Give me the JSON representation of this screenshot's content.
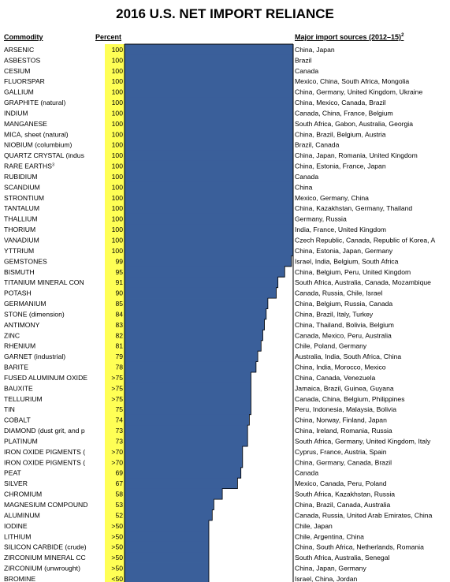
{
  "title": "2016 U.S. NET IMPORT RELIANCE",
  "headers": {
    "commodity": "Commodity",
    "percent": "Percent",
    "sources": "Major import sources (2012–15)",
    "sources_sup": "2"
  },
  "colors": {
    "bar": "#3a5f9a",
    "percent_highlight": "#ffff55",
    "frame": "#000000"
  },
  "chart_data": {
    "type": "bar",
    "orientation": "horizontal",
    "title": "2016 U.S. NET IMPORT RELIANCE",
    "xlim": [
      0,
      100
    ],
    "rows": [
      {
        "commodity": "ARSENIC",
        "sup": "",
        "label": "100",
        "value": 100,
        "sources": "China, Japan"
      },
      {
        "commodity": "ASBESTOS",
        "sup": "",
        "label": "100",
        "value": 100,
        "sources": "Brazil"
      },
      {
        "commodity": "CESIUM",
        "sup": "",
        "label": "100",
        "value": 100,
        "sources": "Canada"
      },
      {
        "commodity": "FLUORSPAR",
        "sup": "",
        "label": "100",
        "value": 100,
        "sources": "Mexico, China, South Africa, Mongolia"
      },
      {
        "commodity": "GALLIUM",
        "sup": "",
        "label": "100",
        "value": 100,
        "sources": "China, Germany, United Kingdom, Ukraine"
      },
      {
        "commodity": "GRAPHITE (natural)",
        "sup": "",
        "label": "100",
        "value": 100,
        "sources": "China, Mexico, Canada, Brazil"
      },
      {
        "commodity": "INDIUM",
        "sup": "",
        "label": "100",
        "value": 100,
        "sources": "Canada, China, France, Belgium"
      },
      {
        "commodity": "MANGANESE",
        "sup": "",
        "label": "100",
        "value": 100,
        "sources": "South Africa, Gabon, Australia, Georgia"
      },
      {
        "commodity": "MICA, sheet (natural)",
        "sup": "",
        "label": "100",
        "value": 100,
        "sources": "China, Brazil, Belgium, Austria"
      },
      {
        "commodity": "NIOBIUM (columbium)",
        "sup": "",
        "label": "100",
        "value": 100,
        "sources": "Brazil, Canada"
      },
      {
        "commodity": "QUARTZ CRYSTAL (indus",
        "sup": "",
        "label": "100",
        "value": 100,
        "sources": "China, Japan, Romania, United Kingdom"
      },
      {
        "commodity": "RARE EARTHS",
        "sup": "3",
        "label": "100",
        "value": 100,
        "sources": "China, Estonia, France, Japan"
      },
      {
        "commodity": "RUBIDIUM",
        "sup": "",
        "label": "100",
        "value": 100,
        "sources": "Canada"
      },
      {
        "commodity": "SCANDIUM",
        "sup": "",
        "label": "100",
        "value": 100,
        "sources": "China"
      },
      {
        "commodity": "STRONTIUM",
        "sup": "",
        "label": "100",
        "value": 100,
        "sources": "Mexico, Germany, China"
      },
      {
        "commodity": "TANTALUM",
        "sup": "",
        "label": "100",
        "value": 100,
        "sources": "China, Kazakhstan, Germany, Thailand"
      },
      {
        "commodity": "THALLIUM",
        "sup": "",
        "label": "100",
        "value": 100,
        "sources": "Germany, Russia"
      },
      {
        "commodity": "THORIUM",
        "sup": "",
        "label": "100",
        "value": 100,
        "sources": "India, France, United Kingdom"
      },
      {
        "commodity": "VANADIUM",
        "sup": "",
        "label": "100",
        "value": 100,
        "sources": "Czech Republic, Canada, Republic of Korea, A"
      },
      {
        "commodity": "YTTRIUM",
        "sup": "",
        "label": "100",
        "value": 100,
        "sources": "China, Estonia, Japan, Germany"
      },
      {
        "commodity": "GEMSTONES",
        "sup": "",
        "label": "99",
        "value": 99,
        "sources": "Israel, India, Belgium, South Africa"
      },
      {
        "commodity": "BISMUTH",
        "sup": "",
        "label": "95",
        "value": 95,
        "sources": "China, Belgium, Peru, United Kingdom"
      },
      {
        "commodity": "TITANIUM MINERAL CON",
        "sup": "",
        "label": "91",
        "value": 91,
        "sources": "South Africa, Australia, Canada, Mozambique"
      },
      {
        "commodity": "POTASH",
        "sup": "",
        "label": "90",
        "value": 90,
        "sources": "Canada, Russia, Chile, Israel"
      },
      {
        "commodity": "GERMANIUM",
        "sup": "",
        "label": "85",
        "value": 85,
        "sources": "China, Belgium, Russia, Canada"
      },
      {
        "commodity": "STONE (dimension)",
        "sup": "",
        "label": "84",
        "value": 84,
        "sources": "China, Brazil, Italy, Turkey"
      },
      {
        "commodity": "ANTIMONY",
        "sup": "",
        "label": "83",
        "value": 83,
        "sources": "China, Thailand, Bolivia, Belgium"
      },
      {
        "commodity": "ZINC",
        "sup": "",
        "label": "82",
        "value": 82,
        "sources": "Canada, Mexico, Peru, Australia"
      },
      {
        "commodity": "RHENIUM",
        "sup": "",
        "label": "81",
        "value": 81,
        "sources": "Chile, Poland, Germany"
      },
      {
        "commodity": "GARNET (industrial)",
        "sup": "",
        "label": "79",
        "value": 79,
        "sources": "Australia, India, South Africa, China"
      },
      {
        "commodity": "BARITE",
        "sup": "",
        "label": "78",
        "value": 78,
        "sources": "China, India, Morocco, Mexico"
      },
      {
        "commodity": "FUSED ALUMINUM OXIDE",
        "sup": "",
        "label": ">75",
        "value": 75,
        "sources": "China, Canada, Venezuela"
      },
      {
        "commodity": "BAUXITE",
        "sup": "",
        "label": ">75",
        "value": 75,
        "sources": "Jamaica, Brazil, Guinea, Guyana"
      },
      {
        "commodity": "TELLURIUM",
        "sup": "",
        "label": ">75",
        "value": 75,
        "sources": "Canada, China, Belgium, Philippines"
      },
      {
        "commodity": "TIN",
        "sup": "",
        "label": "75",
        "value": 75,
        "sources": "Peru, Indonesia, Malaysia, Bolivia"
      },
      {
        "commodity": "COBALT",
        "sup": "",
        "label": "74",
        "value": 74,
        "sources": "China, Norway, Finland, Japan"
      },
      {
        "commodity": "DIAMOND (dust grit, and p",
        "sup": "",
        "label": "73",
        "value": 73,
        "sources": "China, Ireland, Romania, Russia"
      },
      {
        "commodity": "PLATINUM",
        "sup": "",
        "label": "73",
        "value": 73,
        "sources": "South Africa, Germany, United Kingdom, Italy"
      },
      {
        "commodity": "IRON OXIDE PIGMENTS (",
        "sup": "",
        "label": ">70",
        "value": 70,
        "sources": "Cyprus, France, Austria, Spain"
      },
      {
        "commodity": "IRON OXIDE PIGMENTS (",
        "sup": "",
        "label": ">70",
        "value": 70,
        "sources": "China, Germany, Canada, Brazil"
      },
      {
        "commodity": "PEAT",
        "sup": "",
        "label": "69",
        "value": 69,
        "sources": "Canada"
      },
      {
        "commodity": "SILVER",
        "sup": "",
        "label": "67",
        "value": 67,
        "sources": "Mexico, Canada, Peru, Poland"
      },
      {
        "commodity": "CHROMIUM",
        "sup": "",
        "label": "58",
        "value": 58,
        "sources": "South Africa, Kazakhstan, Russia"
      },
      {
        "commodity": "MAGNESIUM COMPOUND",
        "sup": "",
        "label": "53",
        "value": 53,
        "sources": "China, Brazil, Canada, Australia"
      },
      {
        "commodity": "ALUMINUM",
        "sup": "",
        "label": "52",
        "value": 52,
        "sources": "Canada, Russia, United Arab Emirates, China"
      },
      {
        "commodity": "IODINE",
        "sup": "",
        "label": ">50",
        "value": 50,
        "sources": "Chile, Japan"
      },
      {
        "commodity": "LITHIUM",
        "sup": "",
        "label": ">50",
        "value": 50,
        "sources": "Chile, Argentina, China"
      },
      {
        "commodity": "SILICON CARBIDE (crude)",
        "sup": "",
        "label": ">50",
        "value": 50,
        "sources": "China, South Africa, Netherlands, Romania"
      },
      {
        "commodity": "ZIRCONIUM MINERAL CC",
        "sup": "",
        "label": ">50",
        "value": 50,
        "sources": "South Africa, Australia, Senegal"
      },
      {
        "commodity": "ZIRCONIUM (unwrought)",
        "sup": "",
        "label": ">50",
        "value": 50,
        "sources": "China, Japan, Germany"
      },
      {
        "commodity": "BROMINE",
        "sup": "",
        "label": "<50",
        "value": 50,
        "sources": "Israel, China, Jordan"
      }
    ]
  }
}
